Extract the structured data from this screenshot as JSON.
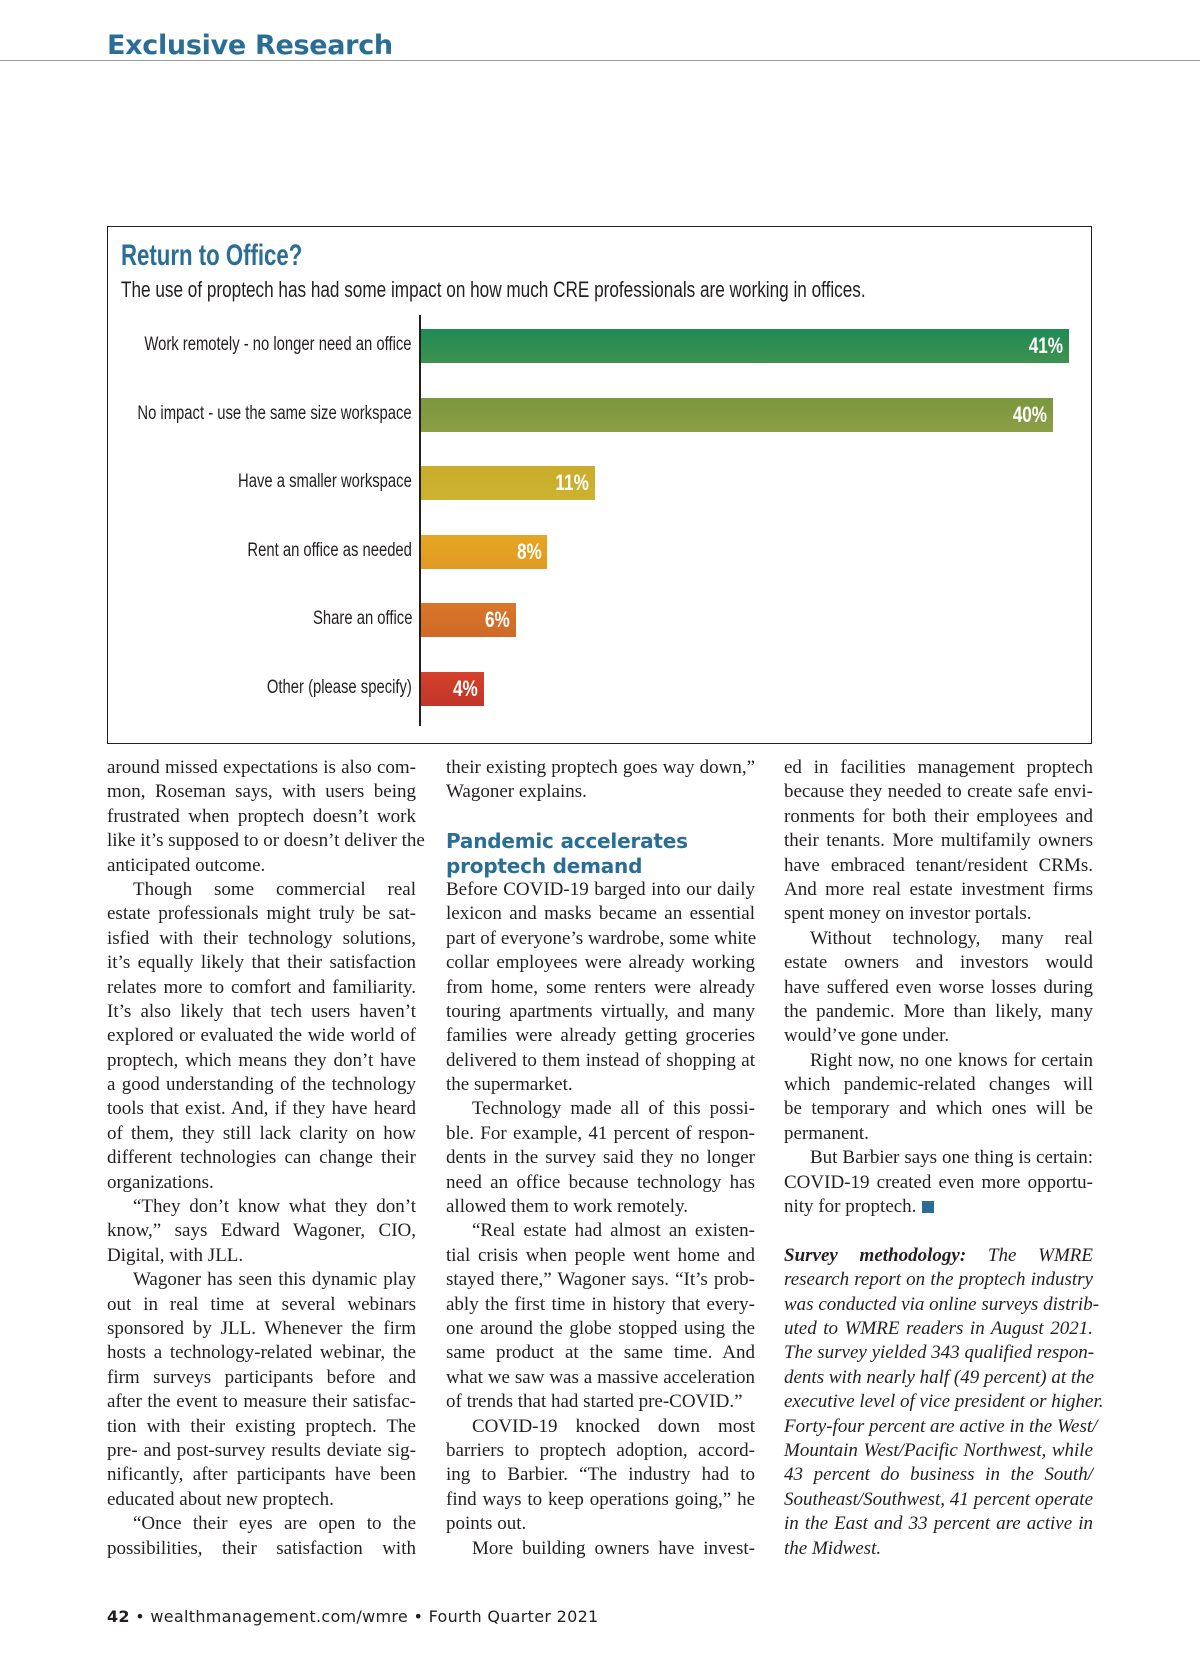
{
  "header": {
    "section": "Exclusive Research"
  },
  "chart_data": {
    "type": "bar",
    "orientation": "horizontal",
    "title": "Return to Office?",
    "subtitle": "The use of proptech has had some impact on how much CRE professionals are working in offices.",
    "categories": [
      "Work remotely - no longer need an office",
      "No impact - use the same size workspace",
      "Have a smaller workspace",
      "Rent an office as needed",
      "Share an office",
      "Other (please specify)"
    ],
    "values": [
      41,
      40,
      11,
      8,
      6,
      4
    ],
    "value_labels": [
      "41%",
      "40%",
      "11%",
      "8%",
      "6%",
      "4%"
    ],
    "unit": "%",
    "colors": [
      [
        "#1d8a55",
        "#3f9150"
      ],
      [
        "#7a973f",
        "#8c9e44"
      ],
      [
        "#c8ac2a",
        "#cdb231"
      ],
      [
        "#e6a623",
        "#e29a22"
      ],
      [
        "#d9772a",
        "#cf6a27"
      ],
      [
        "#d4402a",
        "#c2362a"
      ]
    ],
    "grid": false,
    "legend": "none"
  },
  "columns": [
    [
      {
        "lines": [
          "around missed expectations is also com-",
          "mon, Roseman says, with users being",
          "frustrated when proptech doesn’t work",
          "like it’s supposed to or doesn’t deliver the",
          "anticipated outcome."
        ]
      },
      {
        "indent": true,
        "lines": [
          "Though some commercial real",
          "estate professionals might truly be sat-",
          "isfied with their technology solutions,",
          "it’s equally likely that their satisfaction",
          "relates more to comfort and familiarity.",
          "It’s also likely that tech users haven’t",
          "explored or evaluated the wide world of",
          "proptech, which means they don’t have",
          "a good understanding of the technology",
          "tools that exist. And, if they have heard",
          "of them, they still lack clarity on how",
          "different technologies can change their",
          "organizations."
        ]
      },
      {
        "indent": true,
        "lines": [
          "“They don’t know what they don’t",
          "know,” says Edward Wagoner, CIO,",
          "Digital, with JLL."
        ]
      },
      {
        "indent": true,
        "lines": [
          "Wagoner has seen this dynamic play",
          "out in real time at several webinars",
          "sponsored by JLL. Whenever the firm",
          "hosts a technology-related webinar, the",
          "firm surveys participants before and",
          "after the event to measure their satisfac-",
          "tion with their existing proptech. The",
          "pre- and post-survey results deviate sig-",
          "nificantly, after participants have been",
          "educated about new proptech."
        ]
      },
      {
        "indent": true,
        "continues": true,
        "lines": [
          "“Once their eyes are open to the",
          "possibilities, their satisfaction with"
        ]
      }
    ],
    [
      {
        "lines": [
          "their existing proptech goes way down,”",
          "Wagoner explains."
        ]
      },
      {
        "spacer": true
      },
      {
        "heading": true,
        "lines": [
          "Pandemic accelerates",
          "proptech demand"
        ]
      },
      {
        "lines": [
          "Before COVID-19 barged into our daily",
          "lexicon and masks became an essential",
          "part of everyone’s wardrobe, some white",
          "collar employees were already working",
          "from home, some renters were already",
          "touring apartments virtually, and many",
          "families were already getting groceries",
          "delivered to them instead of shopping at",
          "the supermarket."
        ]
      },
      {
        "indent": true,
        "lines": [
          "Technology made all of this possi-",
          "ble. For example, 41 percent of respon-",
          "dents in the survey said they no longer",
          "need an office because technology has",
          "allowed them to work remotely."
        ]
      },
      {
        "indent": true,
        "lines": [
          "“Real estate had almost an existen-",
          "tial crisis when people went home and",
          "stayed there,” Wagoner says. “It’s prob-",
          "ably the first time in history that every-",
          "one around the globe stopped using the",
          "same product at the same time. And",
          "what we saw was a massive acceleration",
          "of trends that had started pre-COVID.”"
        ]
      },
      {
        "indent": true,
        "lines": [
          "COVID-19 knocked down most",
          "barriers to proptech adoption, accord-",
          "ing to Barbier. “The industry had to",
          "find ways to keep operations going,” he",
          "points out."
        ]
      },
      {
        "indent": true,
        "continues": true,
        "lines": [
          "More building owners have invest-"
        ]
      }
    ],
    [
      {
        "lines": [
          "ed in facilities management proptech",
          "because they needed to create safe envi-",
          "ronments for both their employees and",
          "their tenants. More multifamily owners",
          "have embraced tenant/resident CRMs.",
          "And more real estate investment firms",
          "spent money on investor portals."
        ]
      },
      {
        "indent": true,
        "lines": [
          "Without technology, many real",
          "estate owners and investors would",
          "have suffered even worse losses during",
          "the pandemic. More than likely, many",
          "would’ve gone under."
        ]
      },
      {
        "indent": true,
        "lines": [
          "Right now, no one knows for certain",
          "which pandemic-related changes will",
          "be temporary and which ones will be",
          "permanent."
        ]
      },
      {
        "indent": true,
        "endmark": true,
        "lines": [
          "But Barbier says one thing is certain:",
          "COVID-19 created even more opportu-",
          "nity for proptech."
        ]
      },
      {
        "spacer": true
      },
      {
        "italic": true,
        "lead": "Survey methodology:",
        "lines": [
          " The WMRE",
          "research report on the proptech industry",
          "was conducted via online surveys distrib-",
          "uted to WMRE readers in August 2021.",
          "The survey yielded 343 qualified respon-",
          "dents with nearly half (49 percent) at the",
          "executive level of vice president or higher.",
          "Forty-four percent are active in the West/",
          "Mountain West/Pacific Northwest, while",
          "43 percent do business in the South/",
          "Southeast/Southwest, 41 percent operate",
          "in the East and 33 percent are active in",
          "the Midwest."
        ]
      }
    ]
  ],
  "footer": {
    "page": "42",
    "sep": " • ",
    "site": "wealthmanagement.com/wmre",
    "issue": "Fourth Quarter 2021"
  },
  "colors": {
    "accent": "#2a6e96"
  }
}
